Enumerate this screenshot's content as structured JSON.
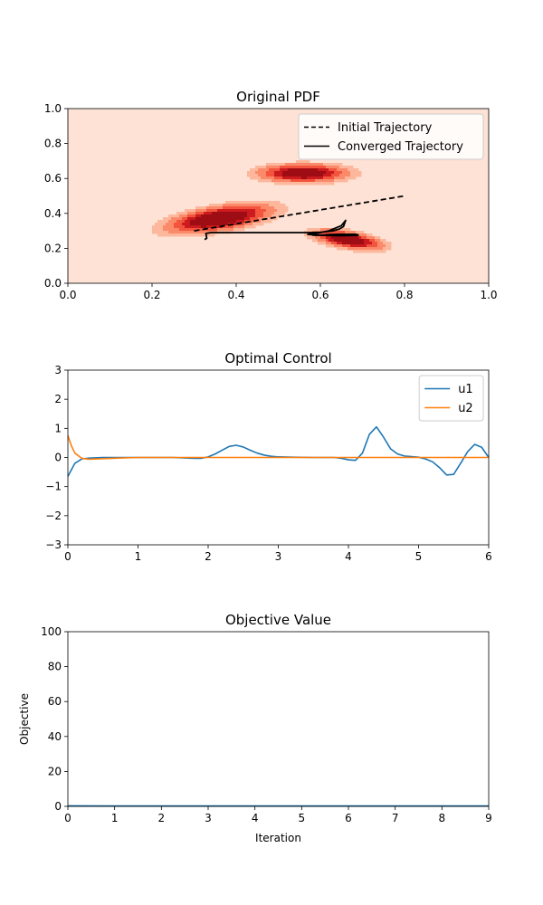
{
  "chart_data": [
    {
      "type": "contour",
      "title": "Original PDF",
      "xlabel": "",
      "ylabel": "",
      "xlim": [
        0,
        1
      ],
      "ylim": [
        0,
        1
      ],
      "xticks": [
        "0.0",
        "0.2",
        "0.4",
        "0.6",
        "0.8",
        "1.0"
      ],
      "yticks": [
        "0.0",
        "0.2",
        "0.4",
        "0.6",
        "0.8",
        "1.0"
      ],
      "colormap": [
        "#fee2d5",
        "#fcb79c",
        "#fb8a6a",
        "#f2543d",
        "#cb1b1e",
        "#9e0d14"
      ],
      "contour_levels": [
        0.1,
        0.2,
        0.35,
        0.5,
        0.65,
        0.8
      ],
      "gaussians": [
        {
          "mx": 0.36,
          "my": 0.37,
          "sx": 0.075,
          "sy": 0.05,
          "rho": 0.55,
          "w": 1.0
        },
        {
          "mx": 0.56,
          "my": 0.63,
          "sx": 0.065,
          "sy": 0.032,
          "rho": 0.0,
          "w": 0.92
        },
        {
          "mx": 0.665,
          "my": 0.25,
          "sx": 0.05,
          "sy": 0.035,
          "rho": -0.55,
          "w": 0.92
        }
      ],
      "legend": {
        "position": "upper-right",
        "entries": [
          "Initial Trajectory",
          "Converged Trajectory"
        ]
      },
      "series": [
        {
          "name": "Initial Trajectory",
          "style": "dashed",
          "color": "#000000",
          "x": [
            0.3,
            0.8
          ],
          "y": [
            0.3,
            0.5
          ]
        },
        {
          "name": "Converged Trajectory",
          "style": "solid",
          "color": "#000000",
          "x": [
            0.325,
            0.33,
            0.328,
            0.34,
            0.45,
            0.57,
            0.6,
            0.63,
            0.645,
            0.655,
            0.66,
            0.65,
            0.62,
            0.59,
            0.57,
            0.6,
            0.65,
            0.69,
            0.685,
            0.64,
            0.6,
            0.58
          ],
          "y": [
            0.25,
            0.258,
            0.285,
            0.29,
            0.29,
            0.29,
            0.292,
            0.3,
            0.31,
            0.325,
            0.36,
            0.33,
            0.3,
            0.285,
            0.28,
            0.275,
            0.272,
            0.275,
            0.28,
            0.28,
            0.275,
            0.275
          ]
        }
      ]
    },
    {
      "type": "line",
      "title": "Optimal Control",
      "xlabel": "",
      "ylabel": "",
      "xlim": [
        0,
        6
      ],
      "ylim": [
        -3,
        3
      ],
      "xticks": [
        "0",
        "1",
        "2",
        "3",
        "4",
        "5",
        "6"
      ],
      "yticks": [
        "−3",
        "−2",
        "−1",
        "0",
        "1",
        "2",
        "3"
      ],
      "legend": {
        "position": "upper-right",
        "entries": [
          "u1",
          "u2"
        ]
      },
      "series": [
        {
          "name": "u1",
          "color": "#1f77b4",
          "x": [
            0,
            0.1,
            0.2,
            0.3,
            0.5,
            1.0,
            1.5,
            1.8,
            1.9,
            2.0,
            2.1,
            2.2,
            2.3,
            2.4,
            2.5,
            2.6,
            2.7,
            2.8,
            2.9,
            3.0,
            3.2,
            3.5,
            3.8,
            3.9,
            4.0,
            4.1,
            4.2,
            4.3,
            4.4,
            4.5,
            4.6,
            4.7,
            4.8,
            5.0,
            5.1,
            5.2,
            5.3,
            5.4,
            5.5,
            5.6,
            5.7,
            5.8,
            5.9,
            6.0
          ],
          "y": [
            -0.65,
            -0.2,
            -0.05,
            -0.02,
            0.0,
            0.0,
            0.0,
            -0.03,
            -0.03,
            0.02,
            0.12,
            0.25,
            0.38,
            0.42,
            0.36,
            0.25,
            0.15,
            0.08,
            0.04,
            0.02,
            0.01,
            0.0,
            0.0,
            -0.03,
            -0.08,
            -0.1,
            0.15,
            0.8,
            1.05,
            0.7,
            0.3,
            0.12,
            0.05,
            0.01,
            -0.05,
            -0.15,
            -0.35,
            -0.6,
            -0.58,
            -0.2,
            0.2,
            0.45,
            0.35,
            0.0
          ]
        },
        {
          "name": "u2",
          "color": "#ff7f0e",
          "x": [
            0,
            0.05,
            0.1,
            0.2,
            0.3,
            0.5,
            1.0,
            1.5,
            2.0,
            6.0
          ],
          "y": [
            0.75,
            0.4,
            0.15,
            -0.03,
            -0.06,
            -0.04,
            0.0,
            0.0,
            0.0,
            0.0
          ]
        }
      ]
    },
    {
      "type": "line",
      "title": "Objective Value",
      "xlabel": "Iteration",
      "ylabel": "Objective",
      "xlim": [
        0,
        9
      ],
      "ylim": [
        0,
        100
      ],
      "xticks": [
        "0",
        "1",
        "2",
        "3",
        "4",
        "5",
        "6",
        "7",
        "8",
        "9"
      ],
      "yticks": [
        "0",
        "20",
        "40",
        "60",
        "80",
        "100"
      ],
      "series": [
        {
          "color": "#1f77b4",
          "x": [
            0,
            1,
            2,
            3,
            4,
            5,
            6,
            7,
            8,
            9
          ],
          "y": [
            0.3,
            0.2,
            0.2,
            0.2,
            0.2,
            0.2,
            0.2,
            0.2,
            0.2,
            0.2
          ]
        }
      ]
    }
  ]
}
